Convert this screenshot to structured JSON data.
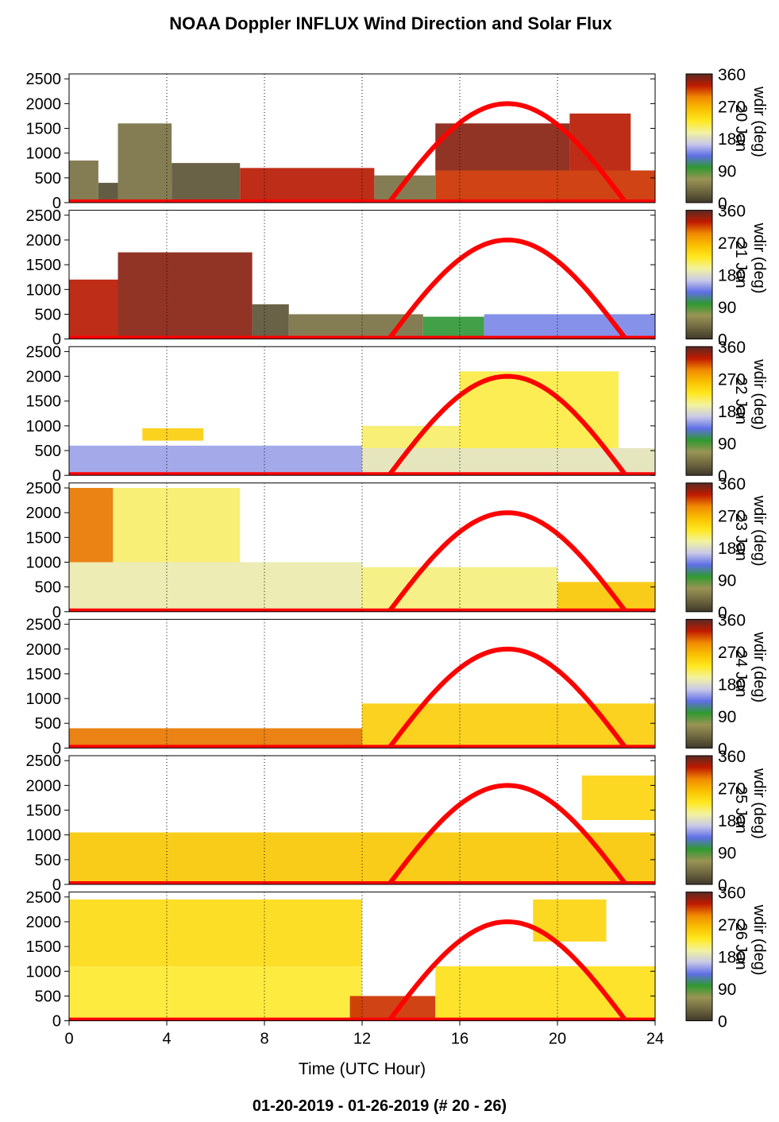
{
  "title": "NOAA Doppler INFLUX Wind Direction and Solar Flux",
  "footer": "01-20-2019 - 01-26-2019   (# 20 - 26)",
  "colors": {
    "sun_curve": "#ff0000",
    "colormap": [
      "#40382a",
      "#6f6840",
      "#9a9455",
      "#2f9a2f",
      "#5f6fe6",
      "#c8c8e8",
      "#f2f2a0",
      "#ffe820",
      "#f9c000",
      "#f08a00",
      "#c01a00",
      "#5a2a22"
    ]
  },
  "chart_data": {
    "type": "heatmap",
    "xlabel": "Time (UTC Hour)",
    "x_ticks": [
      "0",
      "4",
      "8",
      "12",
      "16",
      "20",
      "24"
    ],
    "xlim": [
      0,
      24
    ],
    "y_ticks": [
      "0",
      "500",
      "1000",
      "1500",
      "2000",
      "2500"
    ],
    "ylim": [
      0,
      2600
    ],
    "colorbar": {
      "label": "wdir (deg)",
      "ticks": [
        "0",
        "90",
        "180",
        "270",
        "360"
      ],
      "range": [
        0,
        360
      ]
    },
    "solar_flux_curve": {
      "start_hour": 13.1,
      "peak_hour": 17.9,
      "end_hour": 22.8,
      "peak_value": 2000
    },
    "panels": [
      {
        "day_label": "20 Jan",
        "layers": [
          {
            "x0": 0.0,
            "x1": 1.2,
            "y0": 0,
            "y1": 850,
            "wdir": 40
          },
          {
            "x0": 1.2,
            "x1": 2.0,
            "y0": 0,
            "y1": 400,
            "wdir": 15
          },
          {
            "x0": 2.0,
            "x1": 4.2,
            "y0": 0,
            "y1": 1600,
            "wdir": 40
          },
          {
            "x0": 4.2,
            "x1": 7.0,
            "y0": 0,
            "y1": 800,
            "wdir": 20
          },
          {
            "x0": 7.0,
            "x1": 12.5,
            "y0": 0,
            "y1": 700,
            "wdir": 330
          },
          {
            "x0": 12.5,
            "x1": 15.0,
            "y0": 0,
            "y1": 550,
            "wdir": 40
          },
          {
            "x0": 15.0,
            "x1": 20.5,
            "y0": 650,
            "y1": 1600,
            "wdir": 345
          },
          {
            "x0": 15.0,
            "x1": 24.0,
            "y0": 0,
            "y1": 650,
            "wdir": 320
          },
          {
            "x0": 20.5,
            "x1": 23.0,
            "y0": 650,
            "y1": 1800,
            "wdir": 330
          }
        ]
      },
      {
        "day_label": "21 Jan",
        "layers": [
          {
            "x0": 0.0,
            "x1": 2.0,
            "y0": 0,
            "y1": 1200,
            "wdir": 330
          },
          {
            "x0": 2.0,
            "x1": 7.5,
            "y0": 0,
            "y1": 1750,
            "wdir": 345
          },
          {
            "x0": 7.5,
            "x1": 9.0,
            "y0": 0,
            "y1": 700,
            "wdir": 20
          },
          {
            "x0": 9.0,
            "x1": 14.5,
            "y0": 0,
            "y1": 500,
            "wdir": 40
          },
          {
            "x0": 14.5,
            "x1": 17.0,
            "y0": 0,
            "y1": 450,
            "wdir": 100
          },
          {
            "x0": 17.0,
            "x1": 24.0,
            "y0": 0,
            "y1": 500,
            "wdir": 140
          }
        ]
      },
      {
        "day_label": "22 Jan",
        "layers": [
          {
            "x0": 0.0,
            "x1": 12.0,
            "y0": 0,
            "y1": 600,
            "wdir": 150
          },
          {
            "x0": 12.0,
            "x1": 24.0,
            "y0": 0,
            "y1": 550,
            "wdir": 185
          },
          {
            "x0": 3.0,
            "x1": 5.5,
            "y0": 700,
            "y1": 950,
            "wdir": 250
          },
          {
            "x0": 12.0,
            "x1": 16.0,
            "y0": 550,
            "y1": 1000,
            "wdir": 210
          },
          {
            "x0": 16.0,
            "x1": 22.5,
            "y0": 550,
            "y1": 2100,
            "wdir": 220
          }
        ]
      },
      {
        "day_label": "23 Jan",
        "layers": [
          {
            "x0": 0.0,
            "x1": 1.8,
            "y0": 1000,
            "y1": 2500,
            "wdir": 300
          },
          {
            "x0": 1.8,
            "x1": 7.0,
            "y0": 1000,
            "y1": 2500,
            "wdir": 210
          },
          {
            "x0": 0.0,
            "x1": 12.0,
            "y0": 0,
            "y1": 1000,
            "wdir": 190
          },
          {
            "x0": 12.0,
            "x1": 20.0,
            "y0": 0,
            "y1": 900,
            "wdir": 205
          },
          {
            "x0": 20.0,
            "x1": 24.0,
            "y0": 0,
            "y1": 600,
            "wdir": 255
          }
        ]
      },
      {
        "day_label": "24 Jan",
        "layers": [
          {
            "x0": 0.0,
            "x1": 12.0,
            "y0": 0,
            "y1": 400,
            "wdir": 300
          },
          {
            "x0": 12.0,
            "x1": 24.0,
            "y0": 0,
            "y1": 900,
            "wdir": 250
          }
        ]
      },
      {
        "day_label": "25 Jan",
        "layers": [
          {
            "x0": 0.0,
            "x1": 24.0,
            "y0": 0,
            "y1": 1050,
            "wdir": 255
          },
          {
            "x0": 21.0,
            "x1": 24.0,
            "y0": 1300,
            "y1": 2200,
            "wdir": 245
          }
        ]
      },
      {
        "day_label": "26 Jan",
        "layers": [
          {
            "x0": 0.0,
            "x1": 12.0,
            "y0": 1100,
            "y1": 2450,
            "wdir": 240
          },
          {
            "x0": 0.0,
            "x1": 12.0,
            "y0": 0,
            "y1": 1100,
            "wdir": 225
          },
          {
            "x0": 11.5,
            "x1": 15.0,
            "y0": 0,
            "y1": 500,
            "wdir": 320
          },
          {
            "x0": 15.0,
            "x1": 24.0,
            "y0": 0,
            "y1": 1100,
            "wdir": 235
          },
          {
            "x0": 19.0,
            "x1": 22.0,
            "y0": 1600,
            "y1": 2450,
            "wdir": 245
          }
        ]
      }
    ]
  }
}
